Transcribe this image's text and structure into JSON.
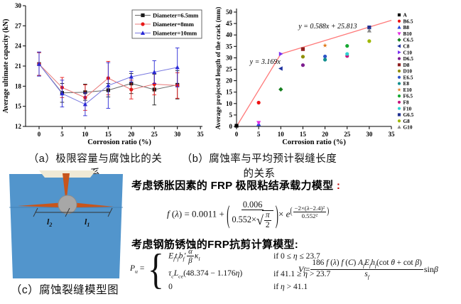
{
  "captions": {
    "a": "（a）极限容量与腐蚀比的关系",
    "b": "（b）腐蚀率与平均预计裂缝长度的关系",
    "c": "（c）腐蚀裂缝模型图"
  },
  "chart_data": [
    {
      "type": "line",
      "title": "",
      "xlabel": "Corrosion ratio (%)",
      "ylabel": "Average ultimate capacity (kN)",
      "xlim": [
        -3,
        36
      ],
      "ylim": [
        12,
        30
      ],
      "xticks": [
        0,
        5,
        10,
        15,
        20,
        25,
        30,
        35
      ],
      "yticks": [
        12,
        15,
        18,
        21,
        24,
        27,
        30
      ],
      "grid": false,
      "legend_position": "top-right",
      "x": [
        0,
        5,
        10,
        15,
        20,
        25,
        30
      ],
      "series": [
        {
          "name": "Diameter=6.5mm",
          "color": "#1a1a1a",
          "line_color": "#666666",
          "marker": "square",
          "values": [
            21.3,
            17.0,
            17.1,
            17.4,
            18.4,
            17.5,
            18.2
          ],
          "errors": [
            1.7,
            1.4,
            1.2,
            1.0,
            1.5,
            2.3,
            2.1
          ]
        },
        {
          "name": "Diameter=8mm",
          "color": "#e81919",
          "line_color": "#e87878",
          "marker": "circle",
          "values": [
            21.3,
            17.8,
            16.3,
            19.2,
            17.5,
            18.3,
            18.1
          ],
          "errors": [
            1.7,
            1.5,
            1.9,
            2.5,
            1.4,
            1.6,
            1.9
          ]
        },
        {
          "name": "Diameter=10mm",
          "color": "#2929d6",
          "line_color": "#7a7ae0",
          "marker": "triangle-up",
          "values": [
            21.3,
            16.9,
            15.3,
            18.1,
            19.4,
            20.1,
            20.8
          ],
          "errors": [
            1.8,
            2.0,
            1.7,
            3.4,
            0.8,
            1.7,
            2.9
          ]
        }
      ]
    },
    {
      "type": "scatter",
      "title": "",
      "xlabel": "Corrosion ratio (%)",
      "ylabel": "Average projected length of the crack (mm)",
      "xlim": [
        0,
        35
      ],
      "ylim": [
        0,
        50
      ],
      "xticks": [
        0,
        5,
        10,
        15,
        20,
        25,
        30,
        35
      ],
      "yticks": [
        0,
        5,
        10,
        15,
        20,
        25,
        30,
        35,
        40,
        45,
        50
      ],
      "grid": false,
      "legend_position": "right-outside",
      "points": [
        {
          "name": "A",
          "x": 0,
          "y": 0.3,
          "color": "#000000",
          "marker": "square"
        },
        {
          "name": "B6.5",
          "x": 5,
          "y": 10.4,
          "color": "#ee1111",
          "marker": "circle"
        },
        {
          "name": "B8",
          "x": 5,
          "y": 1.0,
          "color": "#2244dd",
          "marker": "triangle-up"
        },
        {
          "name": "B10",
          "x": 5,
          "y": 1.6,
          "color": "#e22ce2",
          "marker": "triangle-down"
        },
        {
          "name": "C6.5",
          "x": 10,
          "y": 16.2,
          "color": "#157f1f",
          "marker": "diamond"
        },
        {
          "name": "C8",
          "x": 10,
          "y": 25.3,
          "color": "#1c2f9e",
          "marker": "triangle-left"
        },
        {
          "name": "C10",
          "x": 10,
          "y": 31.7,
          "color": "#7a2ff0",
          "marker": "triangle-right"
        },
        {
          "name": "D6.5",
          "x": 15,
          "y": 26.8,
          "color": "#7d1d8f",
          "marker": "circle"
        },
        {
          "name": "D8",
          "x": 15,
          "y": 33.8,
          "color": "#8f1f1f",
          "marker": "square"
        },
        {
          "name": "D10",
          "x": 15,
          "y": 30.5,
          "color": "#8f8f00",
          "marker": "circle"
        },
        {
          "name": "E6.5",
          "x": 20,
          "y": 30.6,
          "color": "#2f55c8",
          "marker": "circle"
        },
        {
          "name": "E8",
          "x": 20,
          "y": 29.2,
          "color": "#128f8f",
          "marker": "circle"
        },
        {
          "name": "E10",
          "x": 20,
          "y": 35.4,
          "color": "#e07818",
          "marker": "star"
        },
        {
          "name": "F6.5",
          "x": 25,
          "y": 35.2,
          "color": "#17a832",
          "marker": "circle"
        },
        {
          "name": "F8",
          "x": 25,
          "y": 30.8,
          "color": "#c4157d",
          "marker": "circle"
        },
        {
          "name": "F10",
          "x": 25,
          "y": 31.7,
          "color": "#2fd0d0",
          "marker": "circle"
        },
        {
          "name": "G6.5",
          "x": 30,
          "y": 43.3,
          "color": "#1f2f8f",
          "marker": "square"
        },
        {
          "name": "G8",
          "x": 30,
          "y": 37.3,
          "color": "#9fb800",
          "marker": "circle"
        },
        {
          "name": "G10",
          "x": 30,
          "y": 41.9,
          "color": "#8a8a8a",
          "marker": "triangle-up"
        }
      ],
      "fit_lines": [
        {
          "label": "y = 3.169x",
          "color": "#ff7a7a",
          "points": [
            [
              0,
              0
            ],
            [
              10,
              31.69
            ]
          ]
        },
        {
          "label": "y = 0.588x + 25.813",
          "color": "#ff7a7a",
          "points": [
            [
              10,
              31.69
            ],
            [
              35,
              46.39
            ]
          ]
        }
      ],
      "annotations": [
        {
          "text": "y = 3.169x",
          "x": 3,
          "y": 27.3
        },
        {
          "text": "y = 0.588x + 25.813",
          "x": 14,
          "y": 42.9
        }
      ]
    }
  ],
  "models": {
    "title1": "考虑锈胀因素的 FRP 极限粘结承载力模型",
    "title1_colon": " :",
    "title2": "考虑钢筋锈蚀的FRP抗剪计算模型:",
    "eq_bond": [
      {
        "t": "f ",
        "i": true
      },
      {
        "t": "("
      },
      {
        "t": "λ",
        "i": true
      },
      {
        "t": ") = 0.0011 + "
      },
      {
        "bigp": "(",
        "h": 2.8
      },
      {
        "frac": {
          "n": [
            {
              "t": "0.006"
            }
          ],
          "d": [
            {
              "t": "0.552×"
            },
            {
              "sqrt": [
                {
                  "frac": {
                    "n": [
                      {
                        "t": "π",
                        "i": true
                      }
                    ],
                    "d": [
                      {
                        "t": "2"
                      }
                    ]
                  }
                }
              ]
            }
          ]
        }
      },
      {
        "bigp": ")",
        "h": 2.8
      },
      {
        "t": "× "
      },
      {
        "t": "e",
        "i": true
      },
      {
        "sup": [
          {
            "bigp": "(",
            "h": 1.5
          },
          {
            "frac": {
              "n": [
                {
                  "t": "−2×("
                },
                {
                  "t": "λ",
                  "i": true
                },
                {
                  "t": "−2.4)²"
                }
              ],
              "d": [
                {
                  "t": "0.552²"
                }
              ]
            }
          },
          {
            "bigp": ")",
            "h": 1.5
          }
        ]
      }
    ],
    "eq_pu": {
      "lhs": [
        {
          "t": "P",
          "i": true
        },
        {
          "sub": "u"
        },
        {
          "t": " = "
        }
      ],
      "rows": [
        {
          "expr": [
            {
              "t": "E",
              "i": true
            },
            {
              "sub": "f"
            },
            {
              "t": "t",
              "i": true
            },
            {
              "sub": "f"
            },
            {
              "t": "b",
              "i": true
            },
            {
              "sub": "f"
            },
            {
              "t": "′"
            },
            {
              "frac": {
                "n": [
                  {
                    "t": "α",
                    "i": true
                  }
                ],
                "d": [
                  {
                    "t": "β",
                    "i": true
                  }
                ]
              }
            },
            {
              "t": "κ",
              "i": true
            },
            {
              "sub": "l"
            }
          ],
          "cond": [
            {
              "t": "if 0 ≤ "
            },
            {
              "t": "η",
              "i": true
            },
            {
              "t": " ≤ 23.7"
            }
          ]
        },
        {
          "expr": [
            {
              "t": "τ",
              "i": true
            },
            {
              "sub": "c"
            },
            {
              "t": "L",
              "i": true
            },
            {
              "sub": "ce"
            },
            {
              "t": "(48.374 − 1.176"
            },
            {
              "t": "η",
              "i": true
            },
            {
              "t": ")"
            }
          ],
          "cond": [
            {
              "t": "if 41.1 ≥ "
            },
            {
              "t": "η",
              "i": true
            },
            {
              "t": " > 23.7"
            }
          ]
        },
        {
          "expr": [
            {
              "t": "0"
            }
          ],
          "cond": [
            {
              "t": "if "
            },
            {
              "t": "η",
              "i": true
            },
            {
              "t": " > 41.1"
            }
          ]
        }
      ]
    },
    "eq_vf": [
      {
        "t": "V",
        "i": true
      },
      {
        "sub": "f"
      },
      {
        "t": " = "
      },
      {
        "frac": {
          "n": [
            {
              "t": "186 "
            },
            {
              "t": "f ",
              "i": true
            },
            {
              "t": "("
            },
            {
              "t": "λ",
              "i": true
            },
            {
              "t": ") "
            },
            {
              "t": "f ",
              "i": true
            },
            {
              "t": "("
            },
            {
              "t": "C",
              "i": true
            },
            {
              "t": ") "
            },
            {
              "t": "A",
              "i": true
            },
            {
              "sub": "f"
            },
            {
              "t": "E",
              "i": true
            },
            {
              "sub": "f"
            },
            {
              "t": "h",
              "i": true
            },
            {
              "sub": "f"
            },
            {
              "t": "(cot "
            },
            {
              "t": "θ",
              "i": true
            },
            {
              "t": " + cot "
            },
            {
              "t": "β",
              "i": true
            },
            {
              "t": ")"
            }
          ],
          "d": [
            {
              "t": "s",
              "i": true
            },
            {
              "sub": "f"
            }
          ]
        }
      },
      {
        "t": " sin "
      },
      {
        "t": "β",
        "i": true
      }
    ]
  },
  "diagram": {
    "label_left": "l",
    "label_left_sub": "2",
    "label_right": "l",
    "label_right_sub": "1",
    "colors": {
      "block": "#5295cc",
      "crack": "#c8551b",
      "rebar": "#a7a7a7",
      "rebar_edge": "#8c8c8c",
      "spall": "#f0ead6",
      "dim": "#333333",
      "crack_line": "#3d7db3"
    }
  }
}
